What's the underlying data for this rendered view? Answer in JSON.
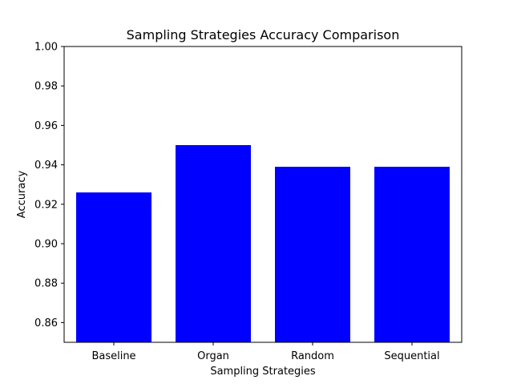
{
  "chart_data": {
    "type": "bar",
    "title": "Sampling Strategies Accuracy Comparison",
    "xlabel": "Sampling Strategies",
    "ylabel": "Accuracy",
    "categories": [
      "Baseline",
      "Organ",
      "Random",
      "Sequential"
    ],
    "values": [
      0.926,
      0.95,
      0.939,
      0.939
    ],
    "ylim": [
      0.85,
      1.0
    ],
    "yticks": [
      "0.86",
      "0.88",
      "0.90",
      "0.92",
      "0.94",
      "0.96",
      "0.98",
      "1.00"
    ],
    "bar_color": "#0000ff",
    "grid": false,
    "legend": "none"
  }
}
